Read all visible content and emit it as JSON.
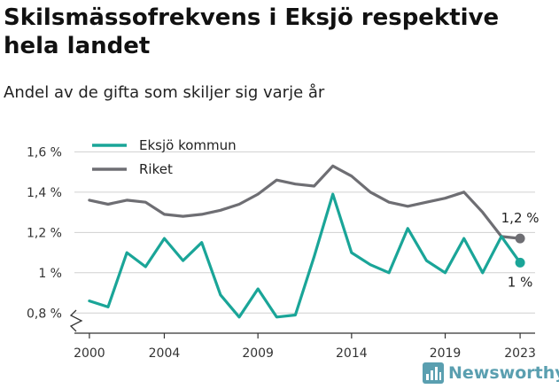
{
  "title": "Skilsmässofrekvens i Eksjö respektive hela landet",
  "subtitle": "Andel av de gifta som skiljer sig varje år",
  "brand": {
    "name": "Newsworthy",
    "icon": "bar-chart-logo-icon",
    "color": "#5a9fb0"
  },
  "colors": {
    "eksjo": "#1aa598",
    "riket": "#6e6e73",
    "grid": "#d0d0d0"
  },
  "chart_data": {
    "type": "line",
    "x": [
      2000,
      2001,
      2002,
      2003,
      2004,
      2005,
      2006,
      2007,
      2008,
      2009,
      2010,
      2011,
      2012,
      2013,
      2014,
      2015,
      2016,
      2017,
      2018,
      2019,
      2020,
      2021,
      2022,
      2023
    ],
    "series": [
      {
        "name": "Eksjö kommun",
        "values": [
          0.86,
          0.83,
          1.1,
          1.03,
          1.17,
          1.06,
          1.15,
          0.89,
          0.78,
          0.92,
          0.78,
          0.79,
          1.08,
          1.39,
          1.1,
          1.04,
          1.0,
          1.22,
          1.06,
          1.0,
          1.17,
          1.0,
          1.18,
          1.05
        ],
        "end_label": "1 %"
      },
      {
        "name": "Riket",
        "values": [
          1.36,
          1.34,
          1.36,
          1.35,
          1.29,
          1.28,
          1.29,
          1.31,
          1.34,
          1.39,
          1.46,
          1.44,
          1.43,
          1.53,
          1.48,
          1.4,
          1.35,
          1.33,
          1.35,
          1.37,
          1.4,
          1.3,
          1.18,
          1.17
        ],
        "end_label": "1,2 %"
      }
    ],
    "ylim": [
      0.7,
      1.65
    ],
    "y_ticks": [
      0.8,
      1.0,
      1.2,
      1.4,
      1.6
    ],
    "y_tick_labels": [
      "0,8 %",
      "1 %",
      "1,2 %",
      "1,4 %",
      "1,6 %"
    ],
    "x_ticks": [
      2000,
      2004,
      2009,
      2014,
      2019,
      2023
    ],
    "x_tick_labels": [
      "2000",
      "2004",
      "2009",
      "2014",
      "2019",
      "2023"
    ],
    "xlim": [
      1999.2,
      2023.8
    ],
    "grid": "horizontal",
    "legend_position": "top-left",
    "axis_break": true
  }
}
